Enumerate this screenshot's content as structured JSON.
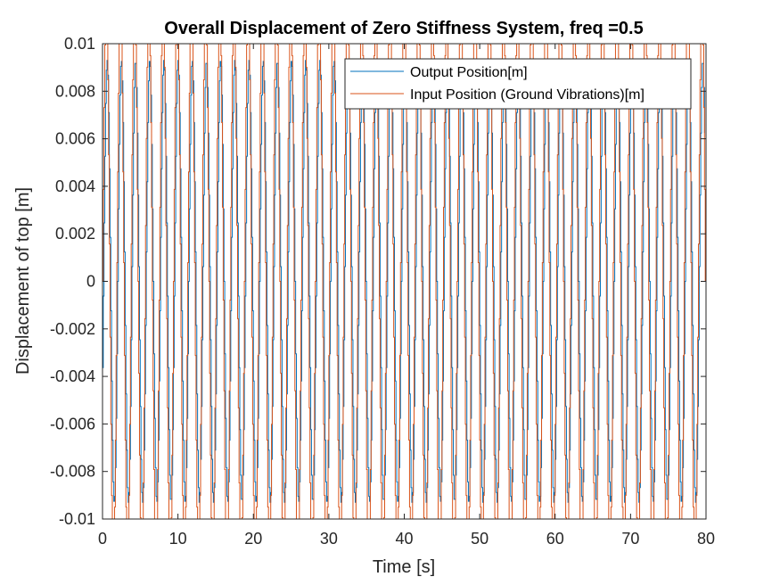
{
  "chart_data": {
    "type": "line",
    "title": "Overall Displacement of Zero Stiffness System, freq =0.5",
    "xlabel": "Time [s]",
    "ylabel": "Displacement of top [m]",
    "xlim": [
      0,
      80
    ],
    "ylim": [
      -0.01,
      0.01
    ],
    "xticks": [
      "0",
      "10",
      "20",
      "30",
      "40",
      "50",
      "60",
      "70",
      "80"
    ],
    "yticks": [
      "-0.01",
      "-0.008",
      "-0.006",
      "-0.004",
      "-0.002",
      "0",
      "0.002",
      "0.004",
      "0.006",
      "0.008",
      "0.01"
    ],
    "grid": false,
    "legend_position": "top-right",
    "series": [
      {
        "name": "Output Position[m]",
        "color": "#0072BD",
        "model": "sinusoid with short steps",
        "amplitude": 0.0093,
        "period": 1.88,
        "phase_lag": 0.12,
        "sample_step": 0.1,
        "x_range": [
          0,
          79.8
        ]
      },
      {
        "name": "Input Position (Ground Vibrations)[m]",
        "color": "#D95319",
        "model": "sinusoid, clipped at axis limits",
        "amplitude": 0.0118,
        "period": 1.88,
        "phase_lag": 0,
        "sample_step": 0.1,
        "x_range": [
          0,
          80
        ]
      }
    ]
  }
}
